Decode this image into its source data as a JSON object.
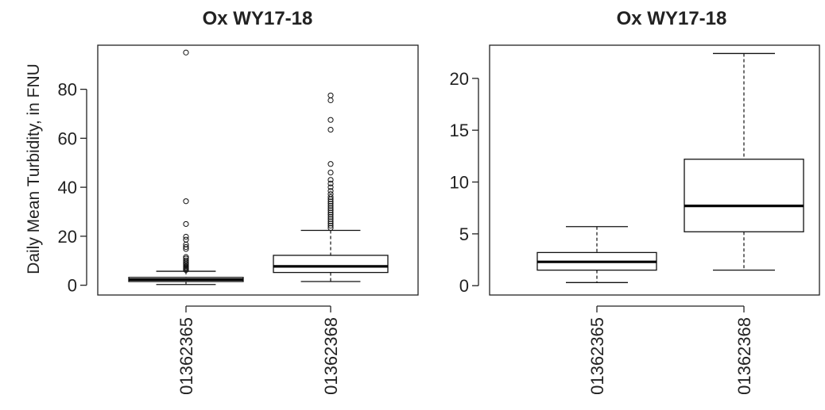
{
  "figure": {
    "ylabel": "Daily Mean Turbidity, in FNU"
  },
  "chart_data": [
    {
      "type": "box",
      "title": "Ox WY17-18",
      "xlabel": "",
      "ylabel": "Daily Mean Turbidity, in FNU",
      "ylim": [
        -4,
        98
      ],
      "yticks": [
        0,
        20,
        40,
        60,
        80
      ],
      "categories": [
        "01362365",
        "01362368"
      ],
      "boxes": [
        {
          "category": "01362365",
          "whisker_low": 0.3,
          "q1": 1.5,
          "median": 2.3,
          "q3": 3.2,
          "whisker_high": 5.7,
          "outliers": [
            6.2,
            6.6,
            7.0,
            7.4,
            7.8,
            8.3,
            8.8,
            9.4,
            10.1,
            10.9,
            11.5,
            14.8,
            15.6,
            16.6,
            18.6,
            19.8,
            25.0,
            34.3,
            95.0
          ]
        },
        {
          "category": "01362368",
          "whisker_low": 1.5,
          "q1": 5.2,
          "median": 7.7,
          "q3": 12.2,
          "whisker_high": 22.4,
          "outliers": [
            23.4,
            24.3,
            25.2,
            26.1,
            27.0,
            27.9,
            28.8,
            29.7,
            30.6,
            31.5,
            32.4,
            33.3,
            34.2,
            35.1,
            36.0,
            37.2,
            38.5,
            40.0,
            41.5,
            43.0,
            46.0,
            49.5,
            63.5,
            67.5,
            75.5,
            77.5
          ]
        }
      ]
    },
    {
      "type": "box",
      "title": "Ox WY17-18",
      "xlabel": "",
      "ylabel": "",
      "ylim": [
        -0.9,
        23.2
      ],
      "yticks": [
        0,
        5,
        10,
        15,
        20
      ],
      "categories": [
        "01362365",
        "01362368"
      ],
      "boxes": [
        {
          "category": "01362365",
          "whisker_low": 0.3,
          "q1": 1.5,
          "median": 2.3,
          "q3": 3.2,
          "whisker_high": 5.7,
          "outliers": []
        },
        {
          "category": "01362368",
          "whisker_low": 1.5,
          "q1": 5.2,
          "median": 7.7,
          "q3": 12.2,
          "whisker_high": 22.4,
          "outliers": []
        }
      ]
    }
  ]
}
